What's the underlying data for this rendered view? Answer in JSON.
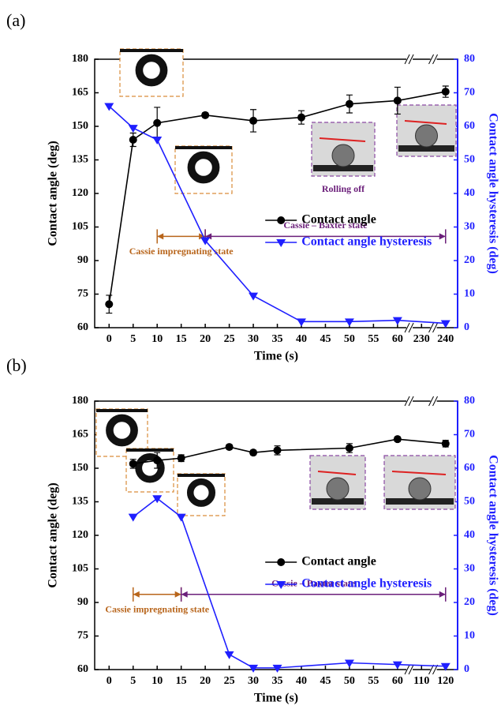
{
  "chart_data": [
    {
      "type": "line",
      "panel": "(a)",
      "x_label": "Time (s)",
      "y_label": "Contact angle (deg)",
      "y2_label": "Contact angle hysteresis (deg)",
      "xlim": [
        -3,
        245
      ],
      "xticks": [
        0,
        5,
        10,
        15,
        20,
        25,
        30,
        35,
        40,
        45,
        50,
        55,
        60,
        230,
        240
      ],
      "ylim": [
        60,
        180
      ],
      "yticks": [
        60,
        75,
        90,
        105,
        120,
        135,
        150,
        165,
        180
      ],
      "y2lim": [
        0,
        80
      ],
      "y2ticks": [
        0,
        10,
        20,
        30,
        40,
        50,
        60,
        70,
        80
      ],
      "legend": "center right",
      "series": [
        {
          "name": "Contact angle",
          "color": "#000000",
          "marker": "circle",
          "x": [
            0,
            5,
            10,
            20,
            30,
            40,
            50,
            60,
            240
          ],
          "values": [
            70.5,
            144,
            151.5,
            155,
            152.5,
            154,
            160,
            161.5,
            165.5
          ],
          "errors": [
            4,
            3,
            7,
            1,
            5,
            3,
            4,
            6,
            2.5
          ]
        },
        {
          "name": "Contact angle hysteresis",
          "color": "#1f1fff",
          "marker": "triangle-down",
          "axis": "y2",
          "x": [
            0,
            5,
            10,
            20,
            30,
            40,
            50,
            60,
            240
          ],
          "values": [
            66,
            59.5,
            56,
            26,
            9.5,
            1.8,
            1.8,
            2.2,
            1.3
          ]
        }
      ],
      "annotations": [
        {
          "text": "Cassie impregnating state",
          "color": "#b8651b",
          "from": 10,
          "to": 20
        },
        {
          "text": "Cassie – Baxter state",
          "color": "#6b1f7a",
          "from": 20,
          "to": 240
        },
        {
          "text": "Rolling off",
          "color": "#6b1f7a"
        }
      ]
    },
    {
      "type": "line",
      "panel": "(b)",
      "x_label": "Time (s)",
      "y_label": "Contact angle (deg)",
      "y2_label": "Contact angle hysteresis (deg)",
      "xlim": [
        -3,
        125
      ],
      "xticks": [
        0,
        5,
        10,
        15,
        20,
        25,
        30,
        35,
        40,
        45,
        50,
        55,
        60,
        110,
        120
      ],
      "ylim": [
        60,
        180
      ],
      "yticks": [
        60,
        75,
        90,
        105,
        120,
        135,
        150,
        165,
        180
      ],
      "y2lim": [
        0,
        80
      ],
      "y2ticks": [
        0,
        10,
        20,
        30,
        40,
        50,
        60,
        70,
        80
      ],
      "legend": "center right",
      "series": [
        {
          "name": "Contact angle",
          "color": "#000000",
          "marker": "circle",
          "x": [
            5,
            10,
            15,
            25,
            30,
            35,
            50,
            60,
            120
          ],
          "values": [
            152,
            153.5,
            154.5,
            159.5,
            157,
            158,
            159,
            163,
            161
          ],
          "errors": [
            2,
            3.5,
            1.5,
            1,
            1,
            2,
            2,
            1,
            1.5
          ]
        },
        {
          "name": "Contact angle hysteresis",
          "color": "#1f1fff",
          "marker": "triangle-down",
          "axis": "y2",
          "x": [
            5,
            10,
            15,
            25,
            30,
            35,
            50,
            60,
            120
          ],
          "values": [
            45.5,
            51,
            45.5,
            4.5,
            0.5,
            0.5,
            2,
            1.5,
            1
          ]
        }
      ],
      "annotations": [
        {
          "text": "Cassie impregnating state",
          "color": "#b8651b",
          "from": 5,
          "to": 15
        },
        {
          "text": "Cassie – Baxter state",
          "color": "#6b1f7a",
          "from": 15,
          "to": 120
        }
      ]
    }
  ]
}
